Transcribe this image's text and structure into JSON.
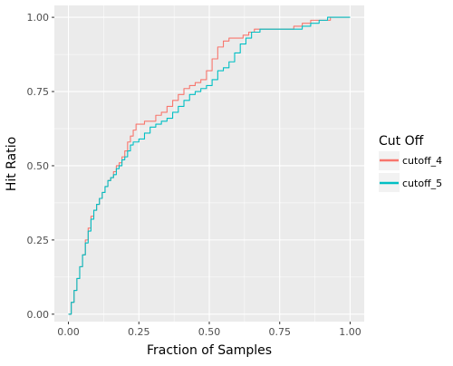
{
  "chart_data": {
    "type": "line",
    "xlabel": "Fraction of Samples",
    "ylabel": "Hit Ratio",
    "xlim": [
      -0.05,
      1.05
    ],
    "ylim": [
      -0.025,
      1.04
    ],
    "x_ticks": [
      0.0,
      0.25,
      0.5,
      0.75,
      1.0
    ],
    "x_tick_labels": [
      "0.00",
      "0.25",
      "0.50",
      "0.75",
      "1.00"
    ],
    "y_ticks": [
      0.0,
      0.25,
      0.5,
      0.75,
      1.0
    ],
    "y_tick_labels": [
      "0.00",
      "0.25",
      "0.50",
      "0.75",
      "1.00"
    ],
    "grid": true,
    "legend": {
      "title": "Cut Off",
      "placement": "right"
    },
    "series": [
      {
        "name": "cutoff_4",
        "color": "#F8766D",
        "points": [
          [
            0.0,
            0.0
          ],
          [
            0.01,
            0.04
          ],
          [
            0.02,
            0.08
          ],
          [
            0.03,
            0.12
          ],
          [
            0.04,
            0.16
          ],
          [
            0.05,
            0.2
          ],
          [
            0.06,
            0.25
          ],
          [
            0.07,
            0.29
          ],
          [
            0.08,
            0.33
          ],
          [
            0.09,
            0.35
          ],
          [
            0.1,
            0.37
          ],
          [
            0.11,
            0.39
          ],
          [
            0.12,
            0.41
          ],
          [
            0.13,
            0.43
          ],
          [
            0.14,
            0.45
          ],
          [
            0.15,
            0.46
          ],
          [
            0.16,
            0.48
          ],
          [
            0.17,
            0.5
          ],
          [
            0.18,
            0.51
          ],
          [
            0.19,
            0.53
          ],
          [
            0.2,
            0.55
          ],
          [
            0.21,
            0.58
          ],
          [
            0.22,
            0.6
          ],
          [
            0.23,
            0.62
          ],
          [
            0.24,
            0.64
          ],
          [
            0.25,
            0.64
          ],
          [
            0.27,
            0.65
          ],
          [
            0.29,
            0.65
          ],
          [
            0.31,
            0.67
          ],
          [
            0.33,
            0.68
          ],
          [
            0.35,
            0.7
          ],
          [
            0.37,
            0.72
          ],
          [
            0.39,
            0.74
          ],
          [
            0.41,
            0.76
          ],
          [
            0.43,
            0.77
          ],
          [
            0.45,
            0.78
          ],
          [
            0.47,
            0.79
          ],
          [
            0.49,
            0.82
          ],
          [
            0.51,
            0.86
          ],
          [
            0.53,
            0.9
          ],
          [
            0.55,
            0.92
          ],
          [
            0.57,
            0.93
          ],
          [
            0.6,
            0.93
          ],
          [
            0.62,
            0.94
          ],
          [
            0.64,
            0.95
          ],
          [
            0.66,
            0.96
          ],
          [
            0.7,
            0.96
          ],
          [
            0.74,
            0.96
          ],
          [
            0.78,
            0.96
          ],
          [
            0.8,
            0.97
          ],
          [
            0.83,
            0.98
          ],
          [
            0.86,
            0.99
          ],
          [
            0.9,
            0.99
          ],
          [
            0.93,
            1.0
          ],
          [
            0.96,
            1.0
          ],
          [
            1.0,
            1.0
          ]
        ]
      },
      {
        "name": "cutoff_5",
        "color": "#00BFC4",
        "points": [
          [
            0.0,
            0.0
          ],
          [
            0.01,
            0.04
          ],
          [
            0.02,
            0.08
          ],
          [
            0.03,
            0.12
          ],
          [
            0.04,
            0.16
          ],
          [
            0.05,
            0.2
          ],
          [
            0.06,
            0.24
          ],
          [
            0.07,
            0.28
          ],
          [
            0.08,
            0.32
          ],
          [
            0.09,
            0.35
          ],
          [
            0.1,
            0.37
          ],
          [
            0.11,
            0.39
          ],
          [
            0.12,
            0.41
          ],
          [
            0.13,
            0.43
          ],
          [
            0.14,
            0.45
          ],
          [
            0.15,
            0.46
          ],
          [
            0.16,
            0.47
          ],
          [
            0.17,
            0.49
          ],
          [
            0.18,
            0.5
          ],
          [
            0.19,
            0.52
          ],
          [
            0.2,
            0.53
          ],
          [
            0.21,
            0.55
          ],
          [
            0.22,
            0.57
          ],
          [
            0.23,
            0.58
          ],
          [
            0.25,
            0.59
          ],
          [
            0.27,
            0.61
          ],
          [
            0.29,
            0.63
          ],
          [
            0.31,
            0.64
          ],
          [
            0.33,
            0.65
          ],
          [
            0.35,
            0.66
          ],
          [
            0.37,
            0.68
          ],
          [
            0.39,
            0.7
          ],
          [
            0.41,
            0.72
          ],
          [
            0.43,
            0.74
          ],
          [
            0.45,
            0.75
          ],
          [
            0.47,
            0.76
          ],
          [
            0.49,
            0.77
          ],
          [
            0.51,
            0.79
          ],
          [
            0.53,
            0.82
          ],
          [
            0.55,
            0.83
          ],
          [
            0.57,
            0.85
          ],
          [
            0.59,
            0.88
          ],
          [
            0.61,
            0.91
          ],
          [
            0.63,
            0.93
          ],
          [
            0.65,
            0.95
          ],
          [
            0.68,
            0.96
          ],
          [
            0.72,
            0.96
          ],
          [
            0.76,
            0.96
          ],
          [
            0.8,
            0.96
          ],
          [
            0.83,
            0.97
          ],
          [
            0.86,
            0.98
          ],
          [
            0.89,
            0.99
          ],
          [
            0.92,
            1.0
          ],
          [
            0.96,
            1.0
          ],
          [
            1.0,
            1.0
          ]
        ]
      }
    ]
  }
}
